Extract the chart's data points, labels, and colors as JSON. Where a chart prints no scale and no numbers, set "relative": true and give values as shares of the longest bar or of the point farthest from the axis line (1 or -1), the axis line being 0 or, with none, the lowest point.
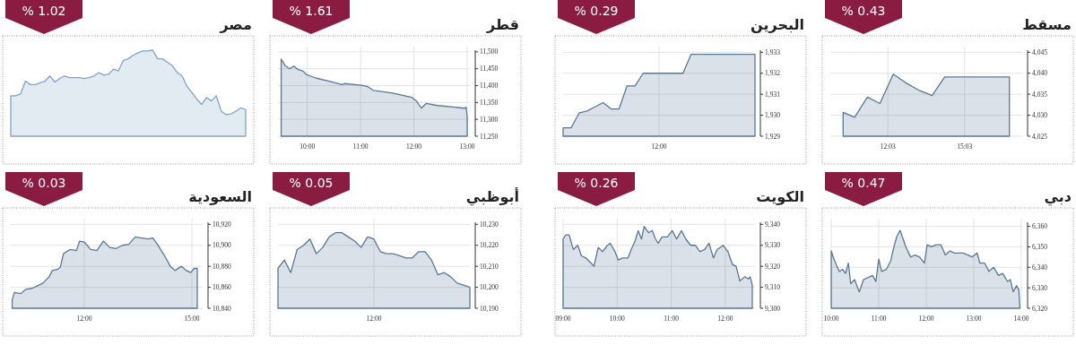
{
  "chart_data": [
    {
      "type": "area",
      "title": "مسقط",
      "annotations": [
        "% 0.43"
      ],
      "grid": true,
      "x": [
        10.3,
        10.75,
        11.25,
        11.74,
        12.26,
        12.73,
        13.28,
        13.78,
        14.27,
        16.8
      ],
      "series": [
        {
          "color": "#5a7896",
          "values": [
            4030.7,
            4029.5,
            4034.3,
            4032.8,
            4039.8,
            4037.8,
            4035.9,
            4034.7,
            4039.1,
            4039.1
          ]
        }
      ],
      "xlim": [
        9.8,
        17.3
      ],
      "ylim": [
        4025,
        4045.5
      ],
      "xticks": [
        {
          "value": 12.05,
          "label": "12:03"
        },
        {
          "value": 15.05,
          "label": "15:03"
        }
      ],
      "yticks": [
        {
          "value": 4025,
          "label": "4,025"
        },
        {
          "value": 4030,
          "label": "4,030"
        },
        {
          "value": 4035,
          "label": "4,035"
        },
        {
          "value": 4040,
          "label": "4,040"
        },
        {
          "value": 4045,
          "label": "4,045"
        }
      ]
    },
    {
      "type": "area",
      "title": "البحرين",
      "annotations": [
        "% 0.29"
      ],
      "grid": true,
      "categories": [
        null,
        null,
        null,
        null,
        null,
        null,
        null,
        null,
        null,
        null,
        null,
        null,
        "12:00",
        null,
        null,
        null,
        null,
        null,
        null,
        null,
        null,
        null,
        null,
        null,
        null
      ],
      "series": [
        {
          "color": "#5a7896",
          "values": [
            1929.4,
            1929.4,
            1930.1,
            1930.2,
            1930.4,
            1930.6,
            1930.3,
            1930.3,
            1931.4,
            1931.4,
            1932.0,
            1932.0,
            1932.0,
            1932.0,
            1932.0,
            1932.0,
            1932.9,
            1932.9,
            1932.9,
            1932.9,
            1932.9,
            1932.9,
            1932.9,
            1932.9,
            1932.9
          ]
        }
      ],
      "ylim": [
        1929,
        1933.1
      ],
      "yticks": [
        {
          "value": 1929,
          "label": "1,929"
        },
        {
          "value": 1930,
          "label": "1,930"
        },
        {
          "value": 1931,
          "label": "1,931"
        },
        {
          "value": 1932,
          "label": "1,932"
        },
        {
          "value": 1933,
          "label": "1,933"
        }
      ]
    },
    {
      "type": "area",
      "title": "قطر",
      "annotations": [
        "% 1.61"
      ],
      "grid": true,
      "x": [
        9.51,
        9.58,
        9.67,
        9.75,
        9.82,
        9.92,
        9.99,
        10.17,
        10.41,
        10.65,
        10.7,
        11.01,
        11.12,
        11.24,
        11.6,
        11.96,
        12.05,
        12.14,
        12.23,
        12.44,
        12.95,
        12.98,
        13.0
      ],
      "series": [
        {
          "color": "#5a7896",
          "values": [
            11479,
            11460,
            11450,
            11458,
            11448,
            11443,
            11432,
            11422,
            11413,
            11403,
            11406,
            11401,
            11398,
            11386,
            11378,
            11365,
            11354,
            11333,
            11347,
            11341,
            11333,
            11336,
            11307
          ]
        }
      ],
      "xlim": [
        9.45,
        13.05
      ],
      "ylim": [
        11250,
        11505
      ],
      "xticks": [
        {
          "value": 10,
          "label": "10:00"
        },
        {
          "value": 11,
          "label": "11:00"
        },
        {
          "value": 12,
          "label": "12:00"
        },
        {
          "value": 13,
          "label": "13:00"
        }
      ],
      "yticks": [
        {
          "value": 11250,
          "label": "11,250"
        },
        {
          "value": 11300,
          "label": "11,300"
        },
        {
          "value": 11350,
          "label": "11,350"
        },
        {
          "value": 11400,
          "label": "11,400"
        },
        {
          "value": 11450,
          "label": "11,450"
        },
        {
          "value": 11500,
          "label": "11,500"
        }
      ]
    },
    {
      "type": "area",
      "title": "مصر",
      "annotations": [
        "% 1.02"
      ],
      "grid": true,
      "relative": true,
      "categories": [
        null,
        null,
        null,
        null,
        null,
        null,
        null,
        null,
        null,
        null,
        null,
        null,
        null,
        null,
        null,
        null,
        null,
        null,
        null,
        null,
        null,
        null,
        null,
        null,
        null,
        null,
        null,
        null,
        null,
        null,
        null,
        null,
        null,
        null,
        null,
        null,
        null,
        null,
        null,
        null,
        null,
        null,
        null,
        null,
        null,
        null,
        null,
        null,
        null
      ],
      "series": [
        {
          "color": "#7fa3c6",
          "values": [
            0.47,
            0.47,
            0.49,
            0.64,
            0.6,
            0.6,
            0.62,
            0.64,
            0.7,
            0.63,
            0.67,
            0.7,
            0.68,
            0.68,
            0.68,
            0.67,
            0.68,
            0.7,
            0.74,
            0.71,
            0.72,
            0.78,
            0.76,
            0.88,
            0.9,
            0.94,
            0.97,
            0.99,
            0.99,
            1.0,
            0.9,
            0.9,
            0.86,
            0.82,
            0.74,
            0.7,
            0.58,
            0.51,
            0.43,
            0.37,
            0.45,
            0.41,
            0.47,
            0.29,
            0.25,
            0.26,
            0.29,
            0.33,
            0.31
          ]
        }
      ]
    },
    {
      "type": "area",
      "title": "دبي",
      "annotations": [
        "% 0.47"
      ],
      "grid": true,
      "x": [
        10.0,
        10.04,
        10.11,
        10.17,
        10.24,
        10.3,
        10.36,
        10.41,
        10.49,
        10.59,
        10.68,
        10.78,
        10.87,
        10.94,
        11.0,
        11.06,
        11.16,
        11.25,
        11.32,
        11.38,
        11.45,
        11.51,
        11.57,
        11.67,
        11.76,
        11.86,
        11.96,
        12.02,
        12.11,
        12.21,
        12.31,
        12.4,
        12.5,
        12.59,
        12.69,
        12.78,
        12.88,
        12.97,
        13.07,
        13.13,
        13.23,
        13.32,
        13.42,
        13.52,
        13.61,
        13.71,
        13.77,
        13.83,
        13.9,
        13.95,
        13.97
      ],
      "series": [
        {
          "color": "#5a7896",
          "values": [
            6348,
            6345,
            6341,
            6338,
            6339,
            6337,
            6342,
            6332,
            6334,
            6328,
            6334,
            6335,
            6336,
            6333,
            6344,
            6338,
            6339,
            6343,
            6350,
            6355,
            6358,
            6354,
            6350,
            6345,
            6346,
            6345,
            6342,
            6351,
            6350,
            6351,
            6351,
            6346,
            6348,
            6347,
            6347,
            6347,
            6346,
            6345,
            6347,
            6342,
            6342,
            6338,
            6340,
            6336,
            6337,
            6333,
            6334,
            6328,
            6331,
            6329,
            6321
          ]
        }
      ],
      "xlim": [
        9.98,
        14.02
      ],
      "ylim": [
        6320,
        6362
      ],
      "xticks": [
        {
          "value": 10,
          "label": "10:00"
        },
        {
          "value": 11,
          "label": "11:00"
        },
        {
          "value": 12,
          "label": "12:00"
        },
        {
          "value": 13,
          "label": "13:00"
        },
        {
          "value": 14,
          "label": "14:00"
        }
      ],
      "yticks": [
        {
          "value": 6320,
          "label": "6,320"
        },
        {
          "value": 6330,
          "label": "6,330"
        },
        {
          "value": 6340,
          "label": "6,340"
        },
        {
          "value": 6350,
          "label": "6,350"
        },
        {
          "value": 6360,
          "label": "6,360"
        }
      ]
    },
    {
      "type": "area",
      "title": "الكويت",
      "annotations": [
        "% 0.26"
      ],
      "grid": true,
      "x": [
        9.0,
        9.05,
        9.11,
        9.19,
        9.27,
        9.34,
        9.42,
        9.5,
        9.57,
        9.65,
        9.73,
        9.82,
        9.87,
        9.96,
        10.02,
        10.1,
        10.2,
        10.26,
        10.33,
        10.39,
        10.45,
        10.5,
        10.58,
        10.65,
        10.71,
        10.76,
        10.83,
        10.93,
        11.02,
        11.1,
        11.19,
        11.27,
        11.36,
        11.45,
        11.53,
        11.62,
        11.7,
        11.78,
        11.85,
        11.96,
        12.05,
        12.13,
        12.2,
        12.27,
        12.36,
        12.43,
        12.46,
        12.5
      ],
      "series": [
        {
          "color": "#5a7896",
          "values": [
            9333,
            9335,
            9335,
            9328,
            9330,
            9325,
            9324,
            9322,
            9320,
            9329,
            9327,
            9330,
            9331,
            9327,
            9323,
            9324,
            9324,
            9328,
            9332,
            9337,
            9333,
            9339,
            9336,
            9337,
            9333,
            9331,
            9334,
            9334,
            9337,
            9333,
            9337,
            9333,
            9330,
            9330,
            9327,
            9328,
            9331,
            9324,
            9328,
            9330,
            9327,
            9321,
            9320,
            9313,
            9315,
            9314,
            9315,
            9311
          ]
        }
      ],
      "xlim": [
        9.0,
        12.55
      ],
      "ylim": [
        9300,
        9341
      ],
      "xticks": [
        {
          "value": 9,
          "label": "09:00"
        },
        {
          "value": 10,
          "label": "10:00"
        },
        {
          "value": 11,
          "label": "11:00"
        },
        {
          "value": 12,
          "label": "12:00"
        }
      ],
      "yticks": [
        {
          "value": 9300,
          "label": "9,300"
        },
        {
          "value": 9310,
          "label": "9,310"
        },
        {
          "value": 9320,
          "label": "9,320"
        },
        {
          "value": 9330,
          "label": "9,330"
        },
        {
          "value": 9340,
          "label": "9,340"
        }
      ]
    },
    {
      "type": "area",
      "title": "أبوظبي",
      "annotations": [
        "% 0.05"
      ],
      "grid": true,
      "categories": [
        null,
        null,
        null,
        null,
        null,
        null,
        null,
        null,
        null,
        null,
        null,
        null,
        null,
        null,
        null,
        "12:00",
        null,
        null,
        null,
        null,
        null,
        null,
        null,
        null,
        null,
        null,
        null,
        null,
        null,
        null,
        null
      ],
      "series": [
        {
          "color": "#5a7896",
          "values": [
            10209,
            10213,
            10207,
            10218,
            10220,
            10223,
            10216,
            10219,
            10224,
            10226,
            10226,
            10224,
            10222,
            10219,
            10224,
            10223,
            10217,
            10216,
            10216,
            10215,
            10214,
            10214,
            10217,
            10217,
            10213,
            10206,
            10207,
            10205,
            10202,
            10201,
            10200
          ]
        }
      ],
      "ylim": [
        10190,
        10231
      ],
      "yticks": [
        {
          "value": 10190,
          "label": "10,190"
        },
        {
          "value": 10200,
          "label": "10,200"
        },
        {
          "value": 10210,
          "label": "10,210"
        },
        {
          "value": 10220,
          "label": "10,220"
        },
        {
          "value": 10230,
          "label": "10,230"
        }
      ]
    },
    {
      "type": "area",
      "title": "السعودية",
      "annotations": [
        "% 0.03"
      ],
      "grid": true,
      "x": [
        9.99,
        10.05,
        10.23,
        10.36,
        10.54,
        10.67,
        10.85,
        11.02,
        11.11,
        11.25,
        11.33,
        11.42,
        11.6,
        11.78,
        11.87,
        12.0,
        12.18,
        12.35,
        12.53,
        12.71,
        12.89,
        13.06,
        13.24,
        13.42,
        13.6,
        13.77,
        13.91,
        14.04,
        14.22,
        14.4,
        14.53,
        14.66,
        14.71,
        14.84,
        14.97,
        15.06,
        15.15
      ],
      "series": [
        {
          "color": "#5a7896",
          "values": [
            10848,
            10855,
            10854,
            10858,
            10859,
            10861,
            10864,
            10870,
            10876,
            10877,
            10879,
            10892,
            10896,
            10895,
            10904,
            10903,
            10896,
            10895,
            10904,
            10898,
            10897,
            10900,
            10901,
            10908,
            10907,
            10906,
            10907,
            10901,
            10891,
            10880,
            10876,
            10879,
            10880,
            10876,
            10874,
            10878,
            10878
          ]
        }
      ],
      "xlim": [
        9.95,
        15.3
      ],
      "ylim": [
        10840,
        10922
      ],
      "xticks": [
        {
          "value": 12,
          "label": "12:00"
        },
        {
          "value": 15,
          "label": "15:00"
        }
      ],
      "yticks": [
        {
          "value": 10840,
          "label": "10,840"
        },
        {
          "value": 10860,
          "label": "10,860"
        },
        {
          "value": 10880,
          "label": "10,880"
        },
        {
          "value": 10900,
          "label": "10,900"
        },
        {
          "value": 10920,
          "label": "10,920"
        }
      ]
    }
  ]
}
